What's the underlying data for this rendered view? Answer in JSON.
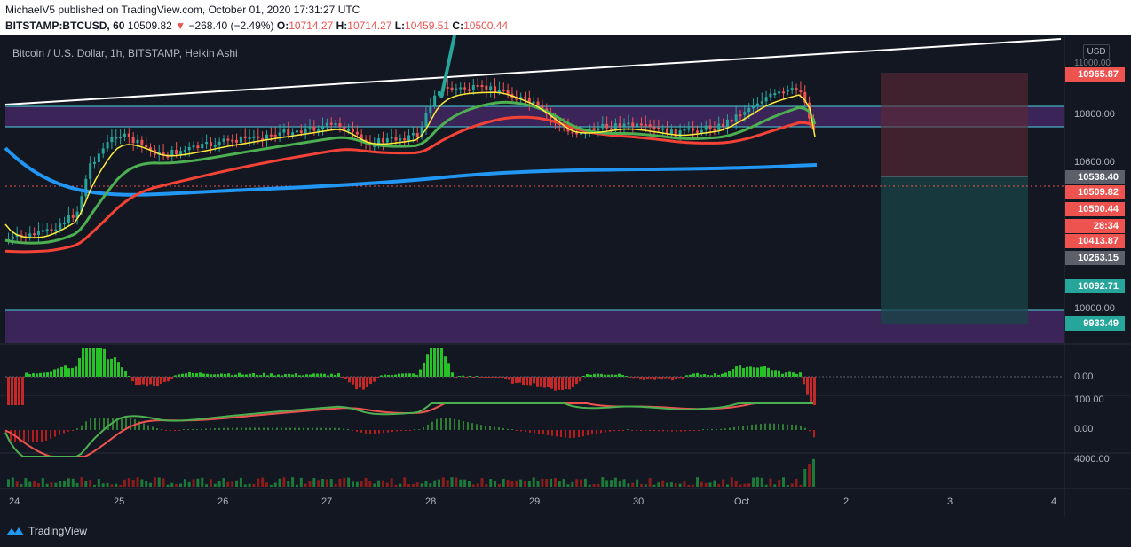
{
  "header": {
    "publish_line": "MichaelV5 published on TradingView.com, October 01, 2020 17:31:27 UTC",
    "symbol": "BITSTAMP:BTCUSD, 60",
    "last_price": "10509.82",
    "change_arrow": "▼",
    "change": "−268.40 (−2.49%)",
    "o_label": "O:",
    "o_value": "10714.27",
    "h_label": "H:",
    "h_value": "10714.27",
    "l_label": "L:",
    "l_value": "10459.51",
    "c_label": "C:",
    "c_value": "10500.44"
  },
  "chart": {
    "title": "Bitcoin / U.S. Dollar, 1h, BITSTAMP, Heikin Ashi",
    "currency_button": "USD",
    "price_axis_labels": [
      "10800.00",
      "10600.00",
      "10000.00"
    ],
    "price_axis_top_partial": "11000.00",
    "badges": [
      {
        "text": "10965.87",
        "color": "#ef5350"
      },
      {
        "text": "10538.40",
        "color": "#5d606b"
      },
      {
        "text": "10509.82",
        "color": "#ef5350"
      },
      {
        "text": "10500.44",
        "color": "#ef5350"
      },
      {
        "text": "28:34",
        "color": "#ef5350"
      },
      {
        "text": "10413.87",
        "color": "#ef5350"
      },
      {
        "text": "10263.15",
        "color": "#5d606b"
      },
      {
        "text": "10092.71",
        "color": "#26a69a"
      },
      {
        "text": "9933.49",
        "color": "#26a69a"
      }
    ],
    "x_axis_labels": [
      "24",
      "25",
      "26",
      "27",
      "28",
      "29",
      "30",
      "Oct",
      "2",
      "3",
      "4"
    ],
    "osc1_label": "0.00",
    "macd_labels": [
      "100.00",
      "0.00"
    ],
    "volume_label": "4000.00"
  },
  "footer": {
    "brand": "TradingView",
    "logo_icon": "tradingview-logo-icon"
  },
  "colors": {
    "background": "#131722",
    "bull": "#26a69a",
    "bear": "#ef5350",
    "ema_fast": "#ffeb3b",
    "ema_green": "#4caf50",
    "ema_red": "#f44336",
    "ema_blue": "#2196f3",
    "zone": "#4a2a6a",
    "zone_line": "#4dd0e1"
  }
}
